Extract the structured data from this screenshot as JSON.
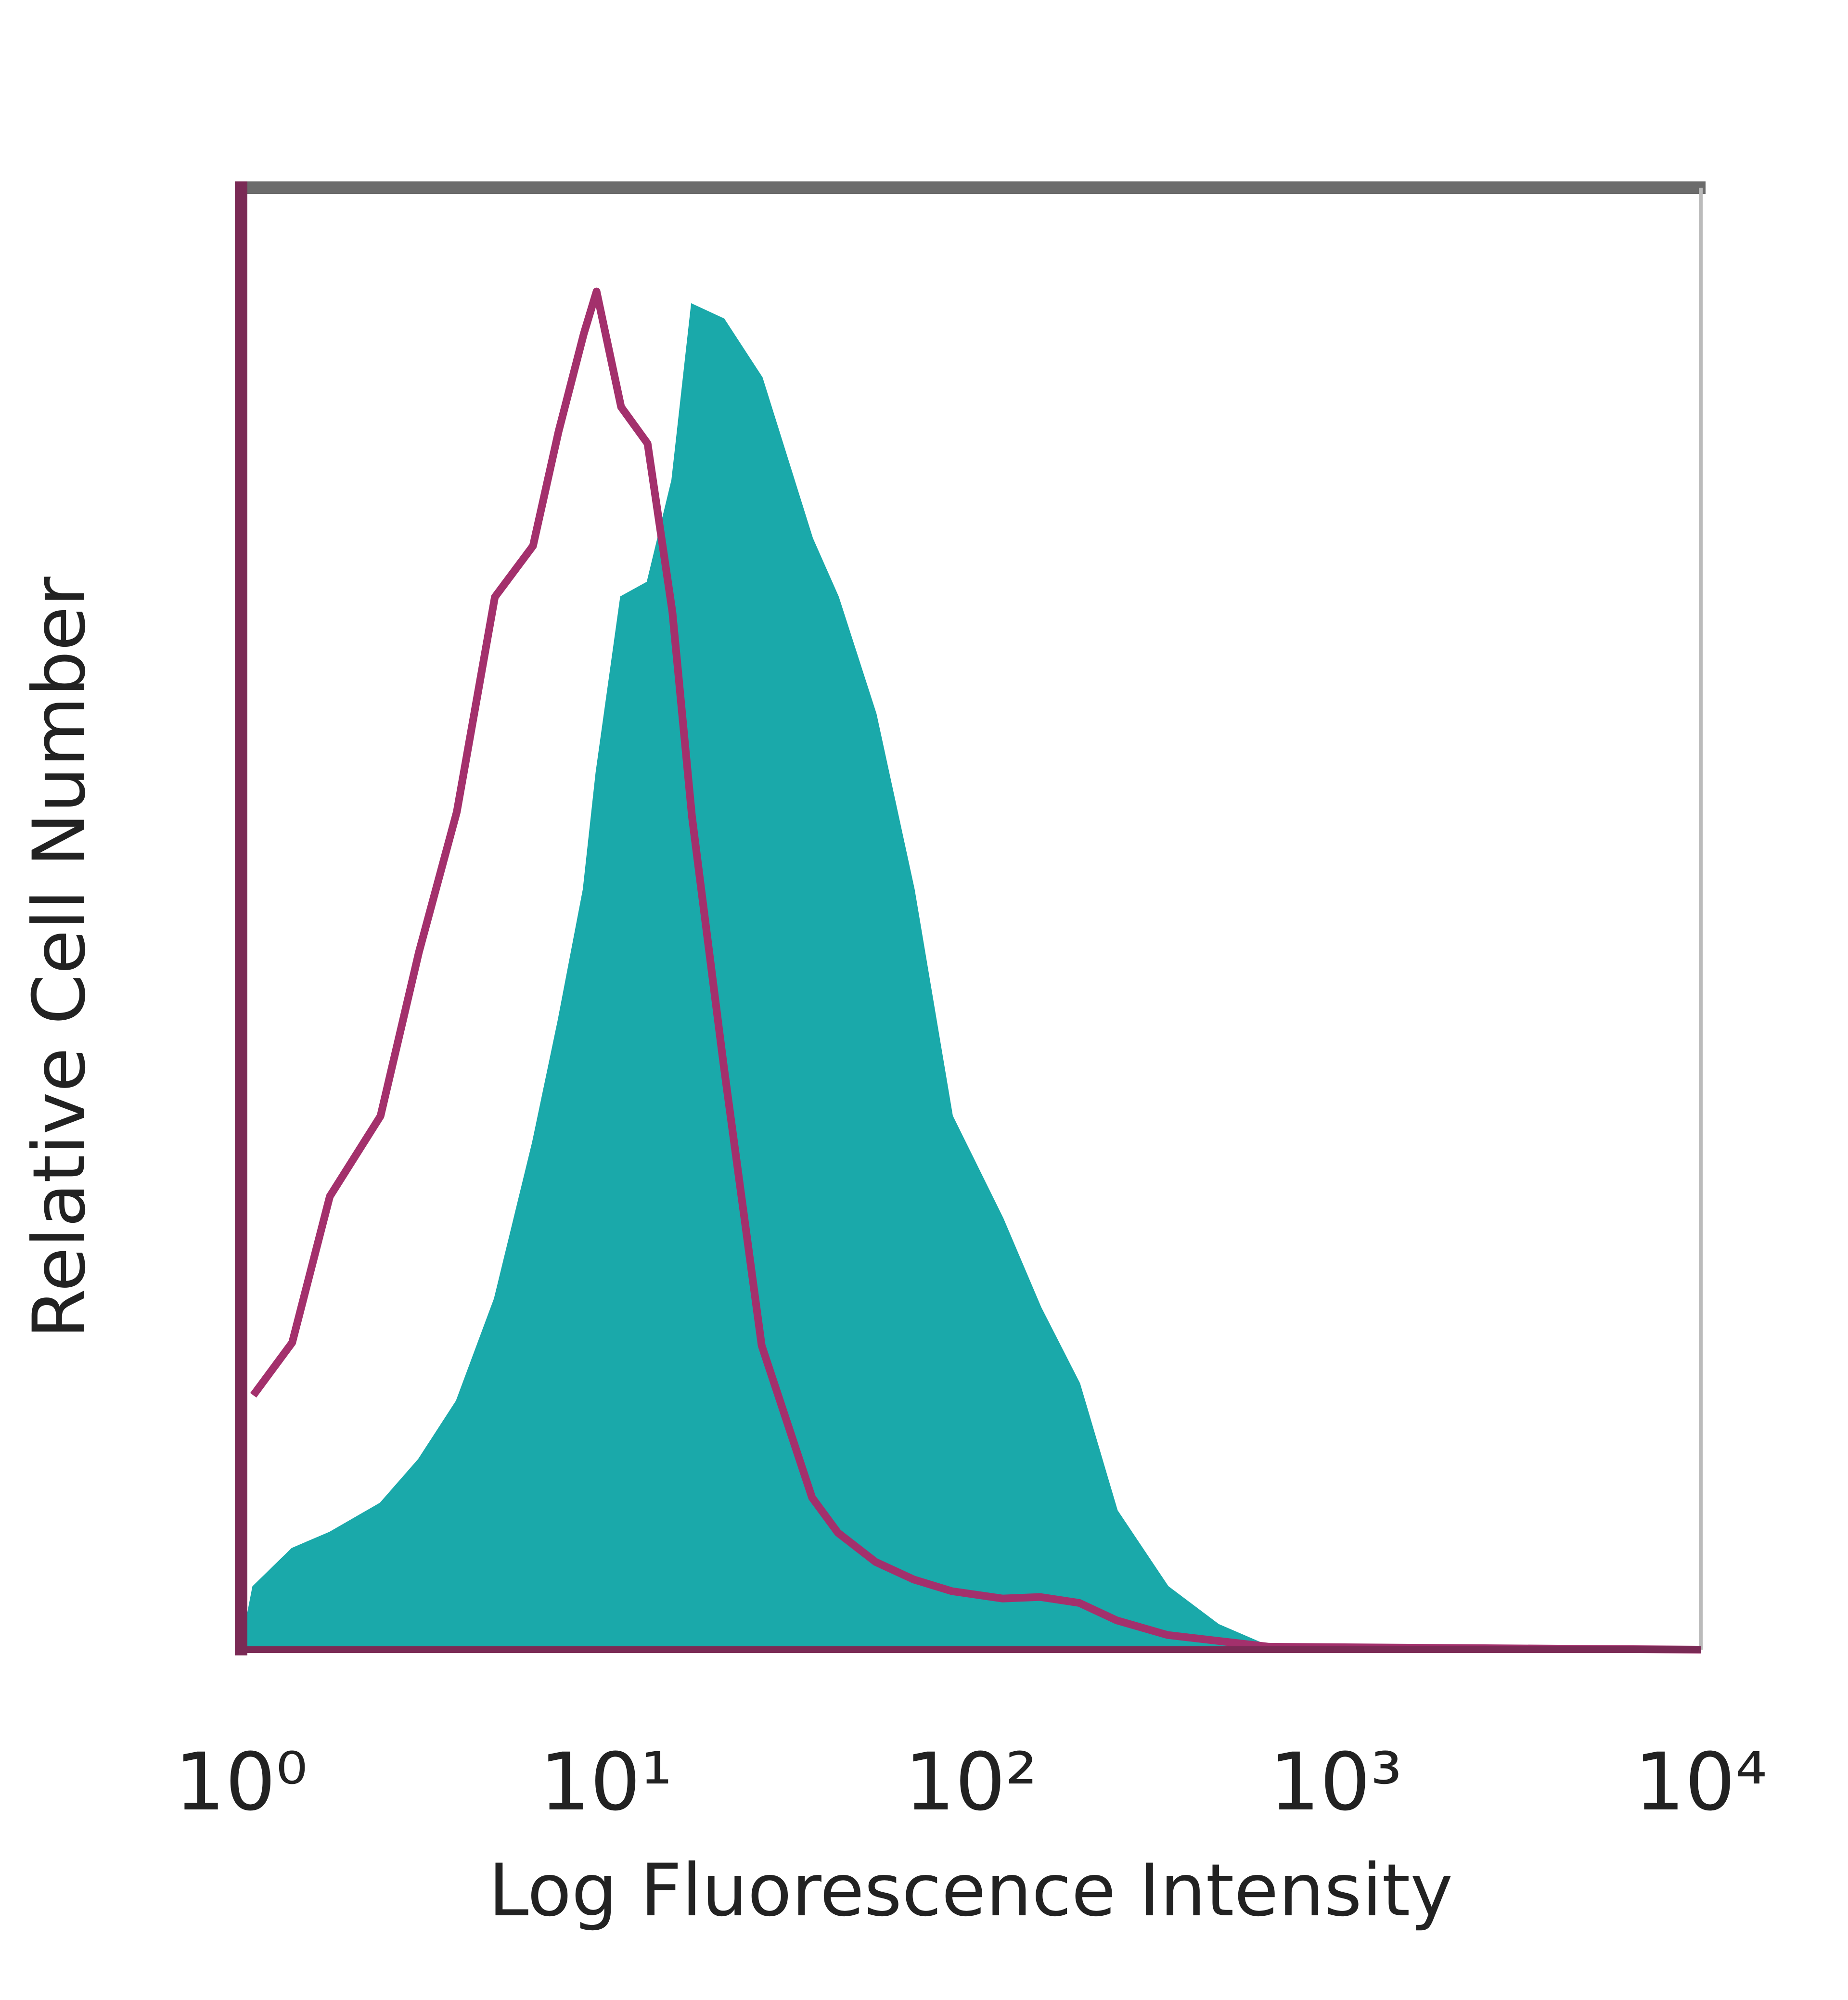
{
  "chart_data": {
    "type": "area",
    "xlabel": "Log Fluorescence Intensity",
    "ylabel": "Relative Cell Number",
    "xscale": "log",
    "xlim": [
      1,
      10000
    ],
    "xticks": [
      {
        "value": 1,
        "label": "10⁰"
      },
      {
        "value": 10,
        "label": "10¹"
      },
      {
        "value": 100,
        "label": "10²"
      },
      {
        "value": 1000,
        "label": "10³"
      },
      {
        "value": 10000,
        "label": "10⁴"
      }
    ],
    "ylim": [
      0,
      100
    ],
    "x": [
      1.08,
      1.38,
      1.75,
      2.41,
      3.07,
      3.9,
      4.96,
      6.31,
      7.41,
      8.69,
      9.42,
      11.0,
      13.0,
      15.2,
      17.2,
      21.0,
      26.7,
      36.7,
      43.2,
      54.8,
      69.7,
      88.7,
      122,
      155,
      198,
      251,
      346,
      476,
      656,
      10000
    ],
    "series": [
      {
        "color": "#1aa9aa",
        "fill": true,
        "values": [
          4.3,
          6.9,
          8,
          10,
          13,
          17,
          24,
          34.7,
          43,
          52,
          60,
          72,
          73,
          80,
          92,
          91,
          87,
          76,
          72,
          64,
          52,
          36.5,
          29.5,
          23.4,
          18.2,
          9.5,
          4.3,
          1.7,
          0.2,
          0
        ]
      },
      {
        "color": "#a3306c",
        "fill": false,
        "values": [
          17.4,
          21,
          31,
          36.5,
          47.7,
          57.3,
          72,
          75.5,
          83.3,
          90,
          92.9,
          85,
          82.5,
          71,
          57,
          40,
          20.8,
          10.4,
          8,
          6,
          4.8,
          4,
          3.5,
          3.6,
          3.2,
          2,
          1,
          0.6,
          0.2,
          0
        ]
      }
    ]
  }
}
